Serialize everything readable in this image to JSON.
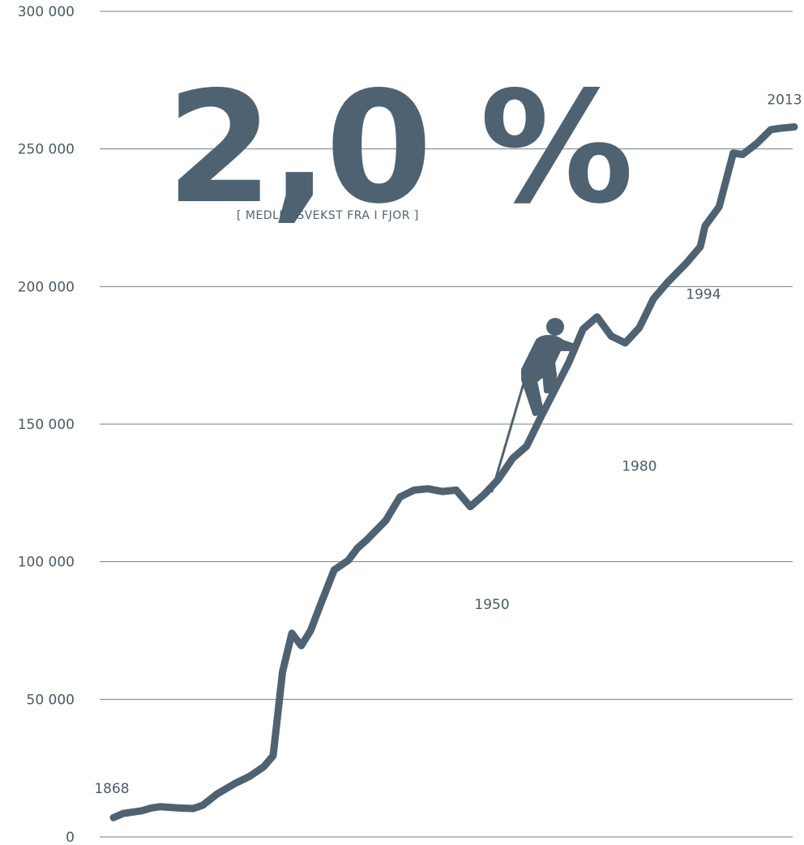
{
  "colors": {
    "line": "#4f6272",
    "grid": "#6e7f8c",
    "text": "#4a5a68"
  },
  "headline": {
    "value": "2,0 %",
    "caption": "[ MEDLEMSVEKST FRA I FJOR ]"
  },
  "climber_icon": "climber-icon",
  "chart_data": {
    "type": "line",
    "title": "",
    "xlabel": "",
    "ylabel": "",
    "ylim": [
      0,
      300000
    ],
    "xlim": [
      1868,
      2013
    ],
    "grid": true,
    "yticks": [
      0,
      50000,
      100000,
      150000,
      200000,
      250000,
      300000
    ],
    "ytick_labels": [
      "0",
      "50 000",
      "100 000",
      "150 000",
      "200 000",
      "250 000",
      "300 000"
    ],
    "series": [
      {
        "x": [
          1868,
          1870,
          1874,
          1876,
          1878,
          1882,
          1885,
          1887,
          1890,
          1894,
          1897,
          1900,
          1902,
          1904,
          1906,
          1908,
          1910,
          1912,
          1915,
          1918,
          1920,
          1922,
          1926,
          1929,
          1932,
          1935,
          1938,
          1941,
          1944,
          1947,
          1950,
          1953,
          1956,
          1959,
          1962,
          1965,
          1968,
          1971,
          1974,
          1977,
          1980,
          1983,
          1986,
          1990,
          1993,
          1994,
          1997,
          2000,
          2002,
          2005,
          2008,
          2010,
          2013
        ],
        "values": [
          7000,
          8500,
          9500,
          10500,
          11000,
          10500,
          10300,
          11500,
          15500,
          19500,
          22000,
          25500,
          29500,
          60000,
          74000,
          69500,
          75000,
          84000,
          97000,
          100500,
          105000,
          108000,
          115000,
          123500,
          126000,
          126500,
          125500,
          126000,
          120000,
          124500,
          130000,
          137500,
          142000,
          152500,
          162500,
          172500,
          184500,
          189000,
          182000,
          179500,
          185000,
          195500,
          201500,
          208500,
          214500,
          222000,
          229000,
          248500,
          248000,
          252000,
          257000,
          257500,
          258000
        ],
        "values_note": ""
      }
    ],
    "annotations": [
      {
        "label": "1868",
        "x": 1868,
        "y": 7000
      },
      {
        "label": "1950",
        "x": 1950,
        "y": 74000
      },
      {
        "label": "1980",
        "x": 1980,
        "y": 126000
      },
      {
        "label": "1994",
        "x": 1994,
        "y": 189000
      },
      {
        "label": "2013",
        "x": 2013,
        "y": 258000
      }
    ]
  }
}
